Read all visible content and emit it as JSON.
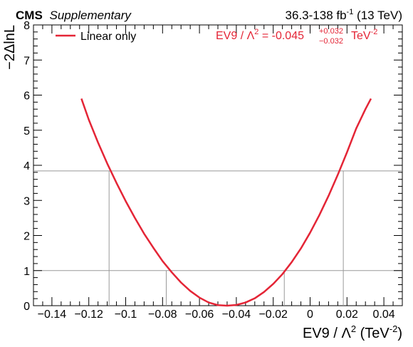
{
  "header": {
    "experiment": "CMS",
    "status": "Supplementary",
    "lumi_prefix": "36.3-138 fb",
    "lumi_exp": "-1",
    "lumi_suffix": " (13 TeV)"
  },
  "legend": {
    "entry": "Linear only"
  },
  "result": {
    "lhs": "EV9 / Λ",
    "lhs_exp": "2",
    "eq": " = -0.045",
    "up": "+0.032",
    "down": "−0.032",
    "unit": " TeV",
    "unit_exp": "-2",
    "color": "#e42536"
  },
  "axes": {
    "xlabel_main": "EV9 / Λ",
    "xlabel_exp": "2",
    "xlabel_unit": " (TeV",
    "xlabel_unit_exp": "-2",
    "xlabel_close": ")",
    "ylabel": "−2ΔlnL"
  },
  "chart_data": {
    "type": "line",
    "xlim": [
      -0.15,
      0.05
    ],
    "ylim": [
      0,
      8
    ],
    "x_ticks": [
      -0.14,
      -0.12,
      -0.1,
      -0.08,
      -0.06,
      -0.04,
      -0.02,
      0,
      0.02,
      0.04
    ],
    "x_tick_labels": [
      "−0.14",
      "−0.12",
      "−0.1",
      "−0.08",
      "−0.06",
      "−0.04",
      "−0.02",
      "0",
      "0.02",
      "0.04"
    ],
    "y_ticks": [
      0,
      1,
      2,
      3,
      4,
      5,
      6,
      7,
      8
    ],
    "y_tick_labels": [
      "0",
      "1",
      "2",
      "3",
      "4",
      "5",
      "6",
      "7",
      "8"
    ],
    "series": [
      {
        "name": "Linear only",
        "color": "#e42536",
        "x": [
          -0.124,
          -0.12,
          -0.115,
          -0.11,
          -0.105,
          -0.1,
          -0.095,
          -0.09,
          -0.085,
          -0.08,
          -0.075,
          -0.07,
          -0.065,
          -0.06,
          -0.055,
          -0.05,
          -0.045,
          -0.04,
          -0.035,
          -0.03,
          -0.025,
          -0.02,
          -0.015,
          -0.01,
          -0.005,
          0,
          0.005,
          0.01,
          0.015,
          0.02,
          0.025,
          0.03,
          0.033
        ],
        "y": [
          5.9,
          5.3,
          4.65,
          4.05,
          3.5,
          2.98,
          2.5,
          2.05,
          1.65,
          1.27,
          0.95,
          0.66,
          0.42,
          0.23,
          0.09,
          0.015,
          0.0,
          0.02,
          0.09,
          0.21,
          0.39,
          0.62,
          0.9,
          1.24,
          1.63,
          2.08,
          2.58,
          3.13,
          3.73,
          4.37,
          5.05,
          5.6,
          5.9
        ]
      }
    ],
    "reference_levels": [
      1.0,
      3.84
    ],
    "crossings_1": [
      -0.078,
      -0.014
    ],
    "crossings_384": [
      -0.109,
      0.018
    ],
    "reference_color": "#999999"
  }
}
